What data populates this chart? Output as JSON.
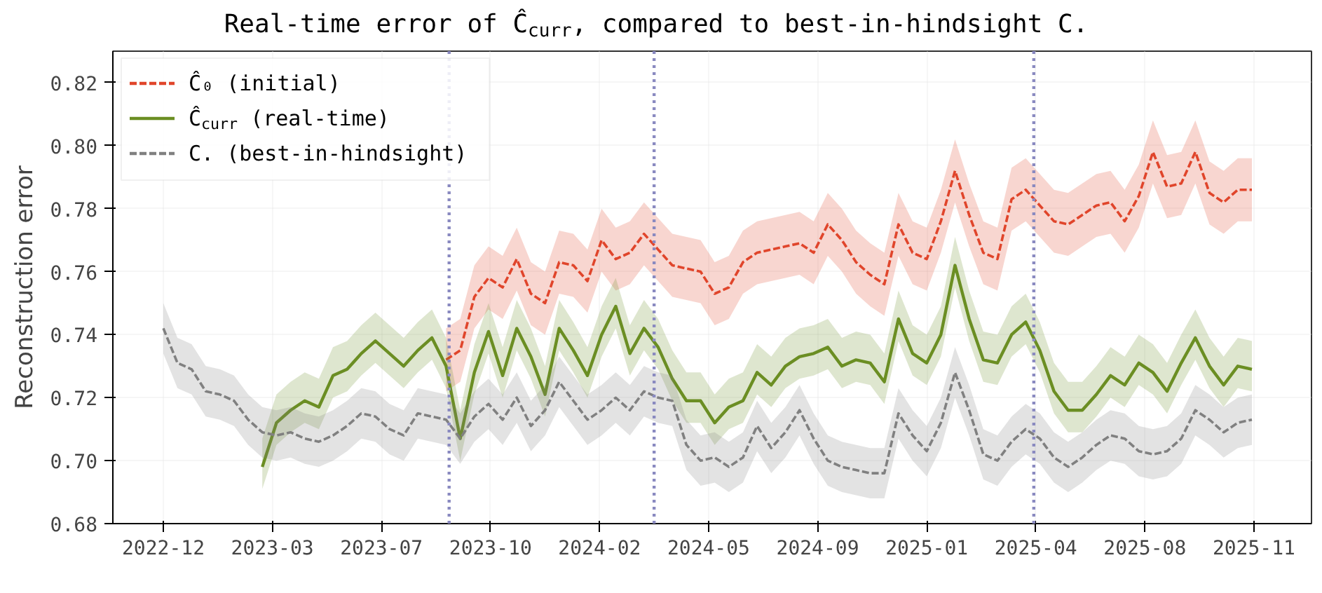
{
  "chart_data": {
    "type": "line",
    "title": "Real-time error of Ĉ$_{curr}$, compared to best-in-hindsight C.",
    "ylabel": "Reconstruction error",
    "x": [
      "2022-12-07",
      "2022-12-21",
      "2023-01-04",
      "2023-01-18",
      "2023-02-01",
      "2023-02-15",
      "2023-03-01",
      "2023-03-15",
      "2023-03-29",
      "2023-04-12",
      "2023-04-26",
      "2023-05-10",
      "2023-05-24",
      "2023-06-07",
      "2023-06-21",
      "2023-07-05",
      "2023-07-19",
      "2023-08-02",
      "2023-08-16",
      "2023-08-30",
      "2023-09-13",
      "2023-09-27",
      "2023-10-11",
      "2023-10-25",
      "2023-11-08",
      "2023-11-22",
      "2023-12-06",
      "2023-12-20",
      "2024-01-03",
      "2024-01-17",
      "2024-01-31",
      "2024-02-14",
      "2024-02-28",
      "2024-03-13",
      "2024-03-27",
      "2024-04-10",
      "2024-04-24",
      "2024-05-08",
      "2024-05-22",
      "2024-06-05",
      "2024-06-19",
      "2024-07-03",
      "2024-07-17",
      "2024-07-31",
      "2024-08-14",
      "2024-08-28",
      "2024-09-11",
      "2024-09-25",
      "2024-10-09",
      "2024-10-23",
      "2024-11-06",
      "2024-11-20",
      "2024-12-04",
      "2024-12-18",
      "2025-01-01",
      "2025-01-15",
      "2025-01-29",
      "2025-02-12",
      "2025-02-26",
      "2025-03-12",
      "2025-03-26",
      "2025-04-09",
      "2025-04-23",
      "2025-05-07",
      "2025-05-21",
      "2025-06-04",
      "2025-06-18",
      "2025-07-02",
      "2025-07-16",
      "2025-07-30",
      "2025-08-13",
      "2025-08-27",
      "2025-09-10",
      "2025-09-24",
      "2025-10-08",
      "2025-10-22",
      "2025-11-05",
      "2025-11-19"
    ],
    "series": [
      {
        "name": "Ĉ₀ (initial)",
        "color": "#e0452b",
        "line_style": "dashed",
        "values": [
          null,
          null,
          null,
          null,
          null,
          null,
          null,
          null,
          null,
          null,
          null,
          null,
          null,
          null,
          null,
          null,
          null,
          null,
          null,
          null,
          0.732,
          0.735,
          0.752,
          0.758,
          0.755,
          0.764,
          0.753,
          0.75,
          0.763,
          0.762,
          0.757,
          0.77,
          0.764,
          0.766,
          0.772,
          0.767,
          0.762,
          0.761,
          0.76,
          0.753,
          0.755,
          0.763,
          0.766,
          0.767,
          0.768,
          0.769,
          0.766,
          0.775,
          0.77,
          0.763,
          0.759,
          0.756,
          0.775,
          0.766,
          0.764,
          0.776,
          0.792,
          0.778,
          0.766,
          0.764,
          0.783,
          0.786,
          0.781,
          0.776,
          0.775,
          0.778,
          0.781,
          0.782,
          0.776,
          0.784,
          0.798,
          0.787,
          0.788,
          0.798,
          0.785,
          0.782,
          0.786,
          0.786
        ],
        "lower": [
          null,
          null,
          null,
          null,
          null,
          null,
          null,
          null,
          null,
          null,
          null,
          null,
          null,
          null,
          null,
          null,
          null,
          null,
          null,
          null,
          0.722,
          0.725,
          0.742,
          0.748,
          0.745,
          0.754,
          0.743,
          0.74,
          0.753,
          0.752,
          0.747,
          0.76,
          0.754,
          0.756,
          0.762,
          0.757,
          0.752,
          0.751,
          0.75,
          0.743,
          0.745,
          0.753,
          0.756,
          0.757,
          0.758,
          0.759,
          0.756,
          0.765,
          0.76,
          0.753,
          0.749,
          0.746,
          0.765,
          0.756,
          0.754,
          0.766,
          0.782,
          0.768,
          0.756,
          0.754,
          0.773,
          0.776,
          0.771,
          0.766,
          0.765,
          0.768,
          0.771,
          0.772,
          0.766,
          0.774,
          0.788,
          0.777,
          0.778,
          0.788,
          0.775,
          0.772,
          0.776,
          0.776
        ],
        "upper": [
          null,
          null,
          null,
          null,
          null,
          null,
          null,
          null,
          null,
          null,
          null,
          null,
          null,
          null,
          null,
          null,
          null,
          null,
          null,
          null,
          0.742,
          0.745,
          0.762,
          0.768,
          0.765,
          0.774,
          0.763,
          0.76,
          0.773,
          0.772,
          0.767,
          0.78,
          0.774,
          0.776,
          0.782,
          0.777,
          0.772,
          0.771,
          0.77,
          0.763,
          0.765,
          0.773,
          0.776,
          0.777,
          0.778,
          0.779,
          0.776,
          0.785,
          0.78,
          0.773,
          0.769,
          0.766,
          0.785,
          0.776,
          0.774,
          0.786,
          0.802,
          0.788,
          0.776,
          0.774,
          0.793,
          0.796,
          0.791,
          0.786,
          0.785,
          0.788,
          0.791,
          0.792,
          0.786,
          0.794,
          0.808,
          0.797,
          0.798,
          0.808,
          0.795,
          0.792,
          0.796,
          0.796
        ]
      },
      {
        "name": "Ĉ$_{curr}$ (real-time)",
        "color": "#6b8e23",
        "line_style": "solid",
        "values": [
          null,
          null,
          null,
          null,
          null,
          null,
          null,
          0.698,
          0.712,
          0.716,
          0.719,
          0.717,
          0.727,
          0.729,
          0.734,
          0.738,
          0.734,
          0.73,
          0.735,
          0.739,
          0.73,
          0.707,
          0.728,
          0.741,
          0.727,
          0.742,
          0.733,
          0.721,
          0.742,
          0.735,
          0.727,
          0.74,
          0.749,
          0.734,
          0.742,
          0.736,
          0.726,
          0.719,
          0.719,
          0.712,
          0.717,
          0.719,
          0.728,
          0.724,
          0.73,
          0.733,
          0.734,
          0.736,
          0.73,
          0.732,
          0.731,
          0.725,
          0.745,
          0.734,
          0.731,
          0.74,
          0.762,
          0.745,
          0.732,
          0.731,
          0.74,
          0.744,
          0.735,
          0.722,
          0.716,
          0.716,
          0.721,
          0.727,
          0.724,
          0.731,
          0.728,
          0.722,
          0.731,
          0.739,
          0.73,
          0.724,
          0.73,
          0.729
        ],
        "lower": [
          null,
          null,
          null,
          null,
          null,
          null,
          null,
          0.691,
          0.705,
          0.709,
          0.712,
          0.71,
          0.72,
          0.722,
          0.727,
          0.731,
          0.727,
          0.723,
          0.728,
          0.732,
          0.723,
          0.7,
          0.721,
          0.734,
          0.72,
          0.735,
          0.726,
          0.714,
          0.735,
          0.728,
          0.72,
          0.733,
          0.742,
          0.727,
          0.735,
          0.729,
          0.719,
          0.712,
          0.712,
          0.705,
          0.71,
          0.712,
          0.721,
          0.717,
          0.723,
          0.726,
          0.727,
          0.729,
          0.723,
          0.725,
          0.724,
          0.718,
          0.738,
          0.727,
          0.724,
          0.733,
          0.755,
          0.738,
          0.725,
          0.724,
          0.733,
          0.737,
          0.728,
          0.715,
          0.709,
          0.709,
          0.714,
          0.72,
          0.717,
          0.724,
          0.721,
          0.715,
          0.724,
          0.732,
          0.723,
          0.717,
          0.723,
          0.722
        ],
        "upper": [
          null,
          null,
          null,
          null,
          null,
          null,
          null,
          0.707,
          0.721,
          0.725,
          0.728,
          0.726,
          0.736,
          0.738,
          0.743,
          0.747,
          0.743,
          0.739,
          0.744,
          0.748,
          0.739,
          0.716,
          0.737,
          0.75,
          0.736,
          0.751,
          0.742,
          0.73,
          0.751,
          0.744,
          0.736,
          0.749,
          0.758,
          0.743,
          0.751,
          0.745,
          0.735,
          0.728,
          0.728,
          0.721,
          0.726,
          0.728,
          0.737,
          0.733,
          0.739,
          0.742,
          0.743,
          0.745,
          0.739,
          0.741,
          0.74,
          0.734,
          0.754,
          0.743,
          0.74,
          0.749,
          0.771,
          0.754,
          0.741,
          0.74,
          0.749,
          0.753,
          0.744,
          0.731,
          0.725,
          0.725,
          0.73,
          0.736,
          0.733,
          0.74,
          0.737,
          0.731,
          0.74,
          0.748,
          0.739,
          0.733,
          0.739,
          0.738
        ]
      },
      {
        "name": "C. (best-in-hindsight)",
        "color": "#808080",
        "line_style": "dashed",
        "values": [
          0.742,
          0.731,
          0.729,
          0.722,
          0.721,
          0.719,
          0.713,
          0.709,
          0.708,
          0.709,
          0.707,
          0.706,
          0.708,
          0.711,
          0.715,
          0.714,
          0.71,
          0.708,
          0.715,
          0.714,
          0.713,
          0.707,
          0.714,
          0.718,
          0.713,
          0.72,
          0.711,
          0.716,
          0.725,
          0.719,
          0.713,
          0.716,
          0.72,
          0.716,
          0.722,
          0.72,
          0.719,
          0.705,
          0.7,
          0.701,
          0.698,
          0.701,
          0.711,
          0.704,
          0.709,
          0.716,
          0.707,
          0.7,
          0.698,
          0.697,
          0.696,
          0.696,
          0.715,
          0.708,
          0.703,
          0.712,
          0.728,
          0.716,
          0.702,
          0.7,
          0.706,
          0.71,
          0.707,
          0.701,
          0.698,
          0.701,
          0.705,
          0.708,
          0.707,
          0.703,
          0.702,
          0.703,
          0.707,
          0.716,
          0.713,
          0.709,
          0.712,
          0.713
        ],
        "lower": [
          0.734,
          0.723,
          0.721,
          0.714,
          0.713,
          0.711,
          0.705,
          0.701,
          0.7,
          0.701,
          0.699,
          0.698,
          0.7,
          0.703,
          0.707,
          0.706,
          0.702,
          0.7,
          0.707,
          0.706,
          0.705,
          0.699,
          0.706,
          0.71,
          0.705,
          0.712,
          0.703,
          0.708,
          0.717,
          0.711,
          0.705,
          0.708,
          0.712,
          0.708,
          0.714,
          0.712,
          0.711,
          0.697,
          0.692,
          0.693,
          0.69,
          0.693,
          0.703,
          0.696,
          0.701,
          0.708,
          0.699,
          0.692,
          0.69,
          0.689,
          0.688,
          0.688,
          0.707,
          0.7,
          0.695,
          0.704,
          0.72,
          0.708,
          0.694,
          0.692,
          0.698,
          0.702,
          0.699,
          0.693,
          0.69,
          0.693,
          0.697,
          0.7,
          0.699,
          0.695,
          0.694,
          0.695,
          0.699,
          0.708,
          0.705,
          0.701,
          0.704,
          0.705
        ],
        "upper": [
          0.75,
          0.739,
          0.737,
          0.73,
          0.729,
          0.727,
          0.721,
          0.717,
          0.716,
          0.717,
          0.715,
          0.714,
          0.716,
          0.719,
          0.723,
          0.722,
          0.718,
          0.716,
          0.723,
          0.722,
          0.721,
          0.715,
          0.722,
          0.726,
          0.721,
          0.728,
          0.719,
          0.724,
          0.733,
          0.727,
          0.721,
          0.724,
          0.728,
          0.724,
          0.73,
          0.728,
          0.727,
          0.713,
          0.708,
          0.709,
          0.706,
          0.709,
          0.719,
          0.712,
          0.717,
          0.724,
          0.715,
          0.708,
          0.706,
          0.705,
          0.704,
          0.704,
          0.723,
          0.716,
          0.711,
          0.72,
          0.736,
          0.724,
          0.71,
          0.708,
          0.714,
          0.718,
          0.715,
          0.709,
          0.706,
          0.709,
          0.713,
          0.716,
          0.715,
          0.711,
          0.71,
          0.711,
          0.715,
          0.724,
          0.721,
          0.717,
          0.72,
          0.721
        ]
      }
    ],
    "xlim": [
      "2022-10-18",
      "2026-01-17"
    ],
    "xticks": [
      {
        "value": "2022-12-07",
        "label": "2022-12"
      },
      {
        "value": "2023-03-25",
        "label": "2023-03"
      },
      {
        "value": "2023-07-11",
        "label": "2023-07"
      },
      {
        "value": "2023-10-27",
        "label": "2023-10"
      },
      {
        "value": "2024-02-12",
        "label": "2024-02"
      },
      {
        "value": "2024-05-30",
        "label": "2024-05"
      },
      {
        "value": "2024-09-15",
        "label": "2024-09"
      },
      {
        "value": "2025-01-01",
        "label": "2025-01"
      },
      {
        "value": "2025-04-19",
        "label": "2025-04"
      },
      {
        "value": "2025-08-05",
        "label": "2025-08"
      },
      {
        "value": "2025-11-21",
        "label": "2025-11"
      }
    ],
    "ylim": [
      0.68,
      0.83
    ],
    "yticks": [
      0.68,
      {
        "value": 0.7,
        "label": "0.70"
      },
      0.72,
      0.74,
      0.76,
      0.78,
      {
        "value": 0.8,
        "label": "0.80"
      },
      0.82
    ],
    "ref_lines": [
      {
        "axis": "x",
        "value": "2023-09-16",
        "color": "#8a8ac0",
        "line_style": "dotted"
      },
      {
        "axis": "x",
        "value": "2024-04-06",
        "color": "#8a8ac0",
        "line_style": "dotted"
      },
      {
        "axis": "x",
        "value": "2025-04-17",
        "color": "#8a8ac0",
        "line_style": "dotted"
      }
    ],
    "grid": true,
    "legend": "top left"
  }
}
